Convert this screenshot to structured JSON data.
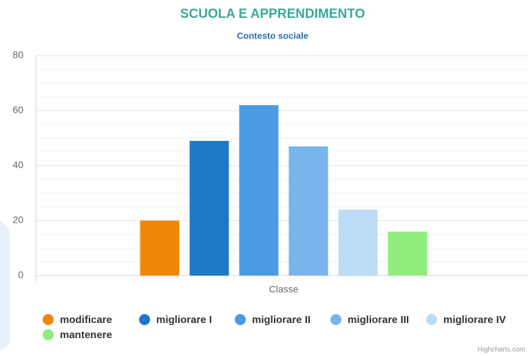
{
  "chart_data": {
    "type": "bar",
    "title": "SCUOLA E APPRENDIMENTO",
    "subtitle": "Contesto sociale",
    "categories": [
      "Classe"
    ],
    "series": [
      {
        "name": "modificare",
        "color": "#f0870a",
        "values": [
          20
        ]
      },
      {
        "name": "migliorare I",
        "color": "#1e78c8",
        "values": [
          49
        ]
      },
      {
        "name": "migliorare II",
        "color": "#4a9be4",
        "values": [
          62
        ]
      },
      {
        "name": "migliorare III",
        "color": "#7ab4ec",
        "values": [
          47
        ]
      },
      {
        "name": "migliorare IV",
        "color": "#bcdcf6",
        "values": [
          24
        ]
      },
      {
        "name": "mantenere",
        "color": "#90ee7e",
        "values": [
          16
        ]
      }
    ],
    "ylim": [
      0,
      80
    ],
    "yticks": [
      0,
      20,
      40,
      60,
      80
    ],
    "minor_yticks": [
      5,
      10,
      15,
      25,
      30,
      35,
      45,
      50,
      55,
      65,
      70,
      75
    ],
    "grid": true,
    "legend": "bottom",
    "credits": "Highcharts.com"
  }
}
